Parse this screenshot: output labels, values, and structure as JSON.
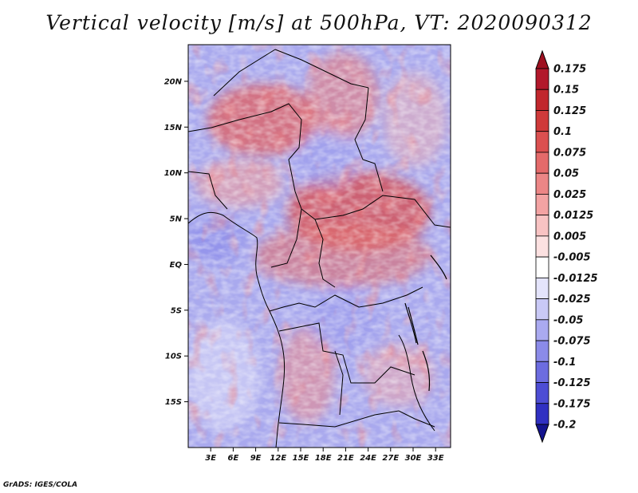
{
  "title": "Vertical velocity [m/s] at 500hPa, VT: 2020090312",
  "credit": "GrADS: IGES/COLA",
  "map": {
    "lon_range": [
      0,
      35
    ],
    "lat_range": [
      -20,
      24
    ],
    "lat_ticks": [
      {
        "lat": 20,
        "label": "20N"
      },
      {
        "lat": 15,
        "label": "15N"
      },
      {
        "lat": 10,
        "label": "10N"
      },
      {
        "lat": 5,
        "label": "5N"
      },
      {
        "lat": 0,
        "label": "EQ"
      },
      {
        "lat": -5,
        "label": "5S"
      },
      {
        "lat": -10,
        "label": "10S"
      },
      {
        "lat": -15,
        "label": "15S"
      }
    ],
    "lon_ticks": [
      {
        "lon": 3,
        "label": "3E"
      },
      {
        "lon": 6,
        "label": "6E"
      },
      {
        "lon": 9,
        "label": "9E"
      },
      {
        "lon": 12,
        "label": "12E"
      },
      {
        "lon": 15,
        "label": "15E"
      },
      {
        "lon": 18,
        "label": "18E"
      },
      {
        "lon": 21,
        "label": "21E"
      },
      {
        "lon": 24,
        "label": "24E"
      },
      {
        "lon": 27,
        "label": "27E"
      },
      {
        "lon": 30,
        "label": "30E"
      },
      {
        "lon": 33,
        "label": "33E"
      }
    ]
  },
  "colorbar": {
    "levels": [
      {
        "label": "0.175",
        "color": "#b2182b"
      },
      {
        "label": "0.15",
        "color": "#c1272d"
      },
      {
        "label": "0.125",
        "color": "#cf3a3a"
      },
      {
        "label": "0.1",
        "color": "#db5050"
      },
      {
        "label": "0.075",
        "color": "#e46a6a"
      },
      {
        "label": "0.05",
        "color": "#ec8686"
      },
      {
        "label": "0.025",
        "color": "#f3a3a3"
      },
      {
        "label": "0.0125",
        "color": "#f8c3c3"
      },
      {
        "label": "0.005",
        "color": "#fce1e1"
      },
      {
        "label": "-0.005",
        "color": "#ffffff"
      },
      {
        "label": "-0.0125",
        "color": "#e4e4fb"
      },
      {
        "label": "-0.025",
        "color": "#c9c9f6"
      },
      {
        "label": "-0.05",
        "color": "#aaaaf0"
      },
      {
        "label": "-0.075",
        "color": "#8b8be9"
      },
      {
        "label": "-0.1",
        "color": "#6c6ce0"
      },
      {
        "label": "-0.125",
        "color": "#4d4dd4"
      },
      {
        "label": "-0.175",
        "color": "#3030c2"
      },
      {
        "label": "-0.2",
        "color": "#1a1aa8"
      }
    ],
    "over_color": "#9e1020",
    "under_color": "#14148f"
  }
}
